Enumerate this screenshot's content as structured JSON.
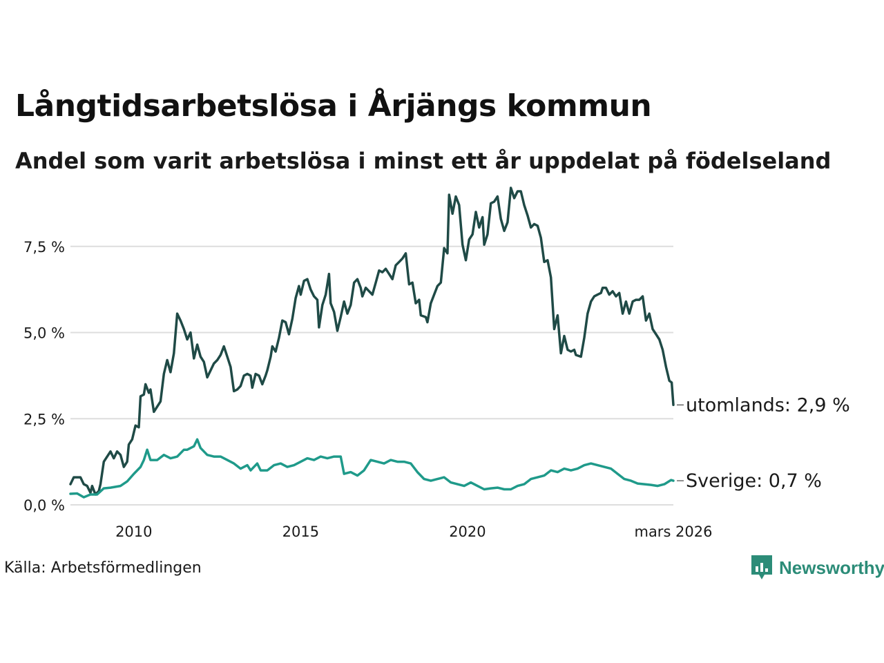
{
  "title": "Långtidsarbetslösa i Årjängs kommun",
  "subtitle": "Andel som varit arbetslösa i minst ett år uppdelat på födelseland",
  "source": "Källa: Arbetsförmedlingen",
  "brand": {
    "name": "Newsworthy",
    "icon": "newsworthy-logo-icon",
    "color": "#2c8c78"
  },
  "chart_data": {
    "type": "line",
    "xlabel": "",
    "ylabel": "",
    "ylim": [
      0,
      9.4
    ],
    "xlim": [
      2008.1,
      2026.17
    ],
    "grid": true,
    "x_ticks": [
      {
        "value": 2010,
        "label": "2010"
      },
      {
        "value": 2015,
        "label": "2015"
      },
      {
        "value": 2020,
        "label": "2020"
      },
      {
        "value": 2026.17,
        "label": "mars 2026"
      }
    ],
    "y_ticks": [
      {
        "value": 0,
        "label": "0,0 %"
      },
      {
        "value": 2.5,
        "label": "2,5 %"
      },
      {
        "value": 5,
        "label": "5,0 %"
      },
      {
        "value": 7.5,
        "label": "7,5 %"
      }
    ],
    "series": [
      {
        "name": "utomlands",
        "color": "#1f4a46",
        "end_label": "utomlands: 2,9 %",
        "points": [
          [
            2008.1,
            0.6
          ],
          [
            2008.2,
            0.8
          ],
          [
            2008.4,
            0.8
          ],
          [
            2008.5,
            0.6
          ],
          [
            2008.6,
            0.55
          ],
          [
            2008.7,
            0.35
          ],
          [
            2008.75,
            0.55
          ],
          [
            2008.85,
            0.3
          ],
          [
            2008.95,
            0.4
          ],
          [
            2009.0,
            0.6
          ],
          [
            2009.1,
            1.25
          ],
          [
            2009.3,
            1.55
          ],
          [
            2009.4,
            1.35
          ],
          [
            2009.5,
            1.55
          ],
          [
            2009.6,
            1.45
          ],
          [
            2009.7,
            1.1
          ],
          [
            2009.8,
            1.25
          ],
          [
            2009.85,
            1.75
          ],
          [
            2009.95,
            1.9
          ],
          [
            2010.05,
            2.3
          ],
          [
            2010.15,
            2.25
          ],
          [
            2010.2,
            3.15
          ],
          [
            2010.3,
            3.2
          ],
          [
            2010.35,
            3.5
          ],
          [
            2010.45,
            3.25
          ],
          [
            2010.5,
            3.35
          ],
          [
            2010.6,
            2.7
          ],
          [
            2010.8,
            3.0
          ],
          [
            2010.9,
            3.8
          ],
          [
            2011.0,
            4.2
          ],
          [
            2011.1,
            3.85
          ],
          [
            2011.2,
            4.4
          ],
          [
            2011.3,
            5.55
          ],
          [
            2011.4,
            5.35
          ],
          [
            2011.5,
            5.1
          ],
          [
            2011.6,
            4.8
          ],
          [
            2011.7,
            5.0
          ],
          [
            2011.8,
            4.25
          ],
          [
            2011.9,
            4.65
          ],
          [
            2012.0,
            4.3
          ],
          [
            2012.1,
            4.15
          ],
          [
            2012.2,
            3.7
          ],
          [
            2012.3,
            3.9
          ],
          [
            2012.4,
            4.1
          ],
          [
            2012.5,
            4.2
          ],
          [
            2012.6,
            4.35
          ],
          [
            2012.7,
            4.6
          ],
          [
            2012.8,
            4.3
          ],
          [
            2012.9,
            4.0
          ],
          [
            2013.0,
            3.3
          ],
          [
            2013.1,
            3.35
          ],
          [
            2013.2,
            3.45
          ],
          [
            2013.3,
            3.75
          ],
          [
            2013.4,
            3.8
          ],
          [
            2013.5,
            3.75
          ],
          [
            2013.55,
            3.4
          ],
          [
            2013.65,
            3.8
          ],
          [
            2013.75,
            3.75
          ],
          [
            2013.85,
            3.5
          ],
          [
            2013.95,
            3.75
          ],
          [
            2014.0,
            3.9
          ],
          [
            2014.1,
            4.3
          ],
          [
            2014.15,
            4.6
          ],
          [
            2014.25,
            4.45
          ],
          [
            2014.35,
            4.85
          ],
          [
            2014.45,
            5.35
          ],
          [
            2014.55,
            5.3
          ],
          [
            2014.65,
            4.95
          ],
          [
            2014.75,
            5.4
          ],
          [
            2014.85,
            6.0
          ],
          [
            2014.95,
            6.35
          ],
          [
            2015.0,
            6.1
          ],
          [
            2015.1,
            6.5
          ],
          [
            2015.2,
            6.55
          ],
          [
            2015.3,
            6.25
          ],
          [
            2015.4,
            6.05
          ],
          [
            2015.5,
            5.95
          ],
          [
            2015.55,
            5.15
          ],
          [
            2015.65,
            5.8
          ],
          [
            2015.75,
            6.1
          ],
          [
            2015.85,
            6.7
          ],
          [
            2015.9,
            5.85
          ],
          [
            2016.0,
            5.6
          ],
          [
            2016.1,
            5.05
          ],
          [
            2016.2,
            5.45
          ],
          [
            2016.3,
            5.9
          ],
          [
            2016.4,
            5.55
          ],
          [
            2016.5,
            5.8
          ],
          [
            2016.6,
            6.45
          ],
          [
            2016.7,
            6.55
          ],
          [
            2016.8,
            6.3
          ],
          [
            2016.85,
            6.05
          ],
          [
            2016.95,
            6.3
          ],
          [
            2017.05,
            6.2
          ],
          [
            2017.15,
            6.1
          ],
          [
            2017.25,
            6.45
          ],
          [
            2017.35,
            6.8
          ],
          [
            2017.45,
            6.75
          ],
          [
            2017.55,
            6.85
          ],
          [
            2017.65,
            6.7
          ],
          [
            2017.75,
            6.55
          ],
          [
            2017.85,
            6.95
          ],
          [
            2017.95,
            7.05
          ],
          [
            2018.05,
            7.15
          ],
          [
            2018.15,
            7.3
          ],
          [
            2018.25,
            6.4
          ],
          [
            2018.35,
            6.45
          ],
          [
            2018.45,
            5.85
          ],
          [
            2018.55,
            5.95
          ],
          [
            2018.6,
            5.5
          ],
          [
            2018.75,
            5.45
          ],
          [
            2018.8,
            5.3
          ],
          [
            2018.9,
            5.85
          ],
          [
            2019.0,
            6.1
          ],
          [
            2019.1,
            6.35
          ],
          [
            2019.2,
            6.45
          ],
          [
            2019.3,
            7.45
          ],
          [
            2019.4,
            7.3
          ],
          [
            2019.45,
            9.0
          ],
          [
            2019.55,
            8.45
          ],
          [
            2019.65,
            8.95
          ],
          [
            2019.75,
            8.7
          ],
          [
            2019.85,
            7.55
          ],
          [
            2019.95,
            7.1
          ],
          [
            2020.05,
            7.7
          ],
          [
            2020.15,
            7.85
          ],
          [
            2020.25,
            8.5
          ],
          [
            2020.35,
            8.05
          ],
          [
            2020.45,
            8.35
          ],
          [
            2020.5,
            7.55
          ],
          [
            2020.6,
            7.85
          ],
          [
            2020.7,
            8.75
          ],
          [
            2020.8,
            8.8
          ],
          [
            2020.9,
            8.95
          ],
          [
            2021.0,
            8.3
          ],
          [
            2021.1,
            7.95
          ],
          [
            2021.2,
            8.2
          ],
          [
            2021.3,
            9.2
          ],
          [
            2021.4,
            8.9
          ],
          [
            2021.5,
            9.1
          ],
          [
            2021.6,
            9.1
          ],
          [
            2021.7,
            8.7
          ],
          [
            2021.8,
            8.4
          ],
          [
            2021.9,
            8.05
          ],
          [
            2022.0,
            8.15
          ],
          [
            2022.1,
            8.1
          ],
          [
            2022.2,
            7.75
          ],
          [
            2022.3,
            7.05
          ],
          [
            2022.4,
            7.1
          ],
          [
            2022.5,
            6.6
          ],
          [
            2022.6,
            5.1
          ],
          [
            2022.7,
            5.5
          ],
          [
            2022.8,
            4.4
          ],
          [
            2022.9,
            4.9
          ],
          [
            2023.0,
            4.5
          ],
          [
            2023.1,
            4.45
          ],
          [
            2023.2,
            4.5
          ],
          [
            2023.25,
            4.35
          ],
          [
            2023.4,
            4.3
          ],
          [
            2023.5,
            4.85
          ],
          [
            2023.6,
            5.55
          ],
          [
            2023.7,
            5.9
          ],
          [
            2023.8,
            6.05
          ],
          [
            2023.9,
            6.1
          ],
          [
            2024.0,
            6.15
          ],
          [
            2024.05,
            6.3
          ],
          [
            2024.15,
            6.3
          ],
          [
            2024.25,
            6.1
          ],
          [
            2024.35,
            6.2
          ],
          [
            2024.45,
            6.05
          ],
          [
            2024.55,
            6.15
          ],
          [
            2024.65,
            5.55
          ],
          [
            2024.75,
            5.9
          ],
          [
            2024.85,
            5.55
          ],
          [
            2024.95,
            5.9
          ],
          [
            2025.05,
            5.95
          ],
          [
            2025.15,
            5.95
          ],
          [
            2025.25,
            6.05
          ],
          [
            2025.35,
            5.35
          ],
          [
            2025.45,
            5.55
          ],
          [
            2025.55,
            5.1
          ],
          [
            2025.65,
            4.95
          ],
          [
            2025.75,
            4.8
          ],
          [
            2025.85,
            4.5
          ],
          [
            2025.95,
            4.0
          ],
          [
            2026.05,
            3.6
          ],
          [
            2026.12,
            3.55
          ],
          [
            2026.17,
            2.9
          ]
        ]
      },
      {
        "name": "Sverige",
        "color": "#1f9a8a",
        "end_label": "Sverige: 0,7 %",
        "points": [
          [
            2008.1,
            0.32
          ],
          [
            2008.3,
            0.33
          ],
          [
            2008.5,
            0.22
          ],
          [
            2008.7,
            0.3
          ],
          [
            2008.9,
            0.3
          ],
          [
            2009.1,
            0.48
          ],
          [
            2009.3,
            0.5
          ],
          [
            2009.6,
            0.55
          ],
          [
            2009.8,
            0.68
          ],
          [
            2010.0,
            0.9
          ],
          [
            2010.2,
            1.1
          ],
          [
            2010.3,
            1.3
          ],
          [
            2010.4,
            1.6
          ],
          [
            2010.5,
            1.3
          ],
          [
            2010.7,
            1.3
          ],
          [
            2010.9,
            1.45
          ],
          [
            2011.1,
            1.35
          ],
          [
            2011.3,
            1.4
          ],
          [
            2011.5,
            1.6
          ],
          [
            2011.6,
            1.6
          ],
          [
            2011.8,
            1.7
          ],
          [
            2011.9,
            1.9
          ],
          [
            2012.0,
            1.65
          ],
          [
            2012.2,
            1.45
          ],
          [
            2012.4,
            1.4
          ],
          [
            2012.6,
            1.4
          ],
          [
            2012.8,
            1.3
          ],
          [
            2013.0,
            1.2
          ],
          [
            2013.2,
            1.05
          ],
          [
            2013.4,
            1.15
          ],
          [
            2013.5,
            1.0
          ],
          [
            2013.7,
            1.2
          ],
          [
            2013.8,
            1.0
          ],
          [
            2014.0,
            1.0
          ],
          [
            2014.2,
            1.15
          ],
          [
            2014.4,
            1.2
          ],
          [
            2014.6,
            1.1
          ],
          [
            2014.8,
            1.15
          ],
          [
            2015.0,
            1.25
          ],
          [
            2015.2,
            1.35
          ],
          [
            2015.4,
            1.3
          ],
          [
            2015.6,
            1.4
          ],
          [
            2015.8,
            1.35
          ],
          [
            2016.0,
            1.4
          ],
          [
            2016.2,
            1.4
          ],
          [
            2016.3,
            0.9
          ],
          [
            2016.5,
            0.95
          ],
          [
            2016.7,
            0.85
          ],
          [
            2016.9,
            1.0
          ],
          [
            2017.1,
            1.3
          ],
          [
            2017.3,
            1.25
          ],
          [
            2017.5,
            1.2
          ],
          [
            2017.7,
            1.3
          ],
          [
            2017.9,
            1.25
          ],
          [
            2018.1,
            1.25
          ],
          [
            2018.3,
            1.2
          ],
          [
            2018.5,
            0.95
          ],
          [
            2018.7,
            0.75
          ],
          [
            2018.9,
            0.7
          ],
          [
            2019.1,
            0.75
          ],
          [
            2019.3,
            0.8
          ],
          [
            2019.5,
            0.65
          ],
          [
            2019.7,
            0.6
          ],
          [
            2019.9,
            0.55
          ],
          [
            2020.1,
            0.65
          ],
          [
            2020.3,
            0.55
          ],
          [
            2020.5,
            0.45
          ],
          [
            2020.7,
            0.48
          ],
          [
            2020.9,
            0.5
          ],
          [
            2021.1,
            0.45
          ],
          [
            2021.3,
            0.45
          ],
          [
            2021.5,
            0.55
          ],
          [
            2021.7,
            0.6
          ],
          [
            2021.9,
            0.75
          ],
          [
            2022.1,
            0.8
          ],
          [
            2022.3,
            0.85
          ],
          [
            2022.5,
            1.0
          ],
          [
            2022.7,
            0.95
          ],
          [
            2022.9,
            1.05
          ],
          [
            2023.1,
            1.0
          ],
          [
            2023.3,
            1.05
          ],
          [
            2023.5,
            1.15
          ],
          [
            2023.7,
            1.2
          ],
          [
            2023.9,
            1.15
          ],
          [
            2024.1,
            1.1
          ],
          [
            2024.3,
            1.05
          ],
          [
            2024.5,
            0.9
          ],
          [
            2024.7,
            0.75
          ],
          [
            2024.9,
            0.7
          ],
          [
            2025.1,
            0.62
          ],
          [
            2025.3,
            0.6
          ],
          [
            2025.5,
            0.58
          ],
          [
            2025.7,
            0.55
          ],
          [
            2025.9,
            0.6
          ],
          [
            2026.1,
            0.72
          ],
          [
            2026.17,
            0.7
          ]
        ]
      }
    ]
  }
}
